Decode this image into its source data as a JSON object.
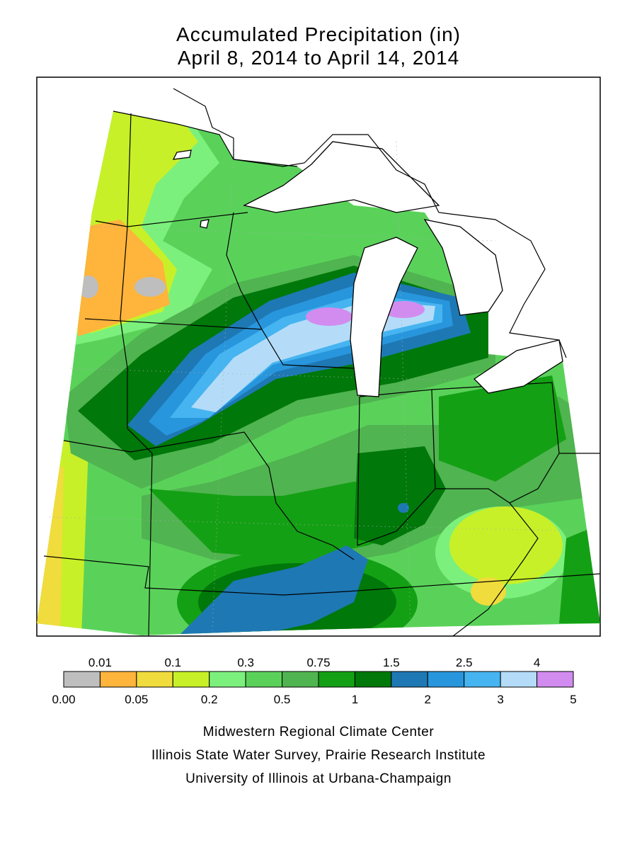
{
  "header": {
    "title": "Accumulated Precipitation (in)",
    "subtitle": "April 8, 2014 to April 14, 2014"
  },
  "legend": {
    "boundaries": [
      {
        "value": 0,
        "label": "0.00"
      },
      0.01,
      0.05,
      0.1,
      0.2,
      0.3,
      0.5,
      0.75,
      1,
      1.5,
      2,
      2.5,
      3,
      4,
      5
    ],
    "colors": [
      "#bebebe",
      "#ffb43c",
      "#f0dc3c",
      "#c8f028",
      "#7cf07c",
      "#5ad25a",
      "#50b450",
      "#14a014",
      "#00780a",
      "#1e78b4",
      "#2896dc",
      "#46b4f0",
      "#b4dcf8",
      "#d28cf0"
    ]
  },
  "credits": [
    "Midwestern Regional Climate Center",
    "Illinois State Water Survey, Prairie Research Institute",
    "University of Illinois at Urbana-Champaign"
  ]
}
